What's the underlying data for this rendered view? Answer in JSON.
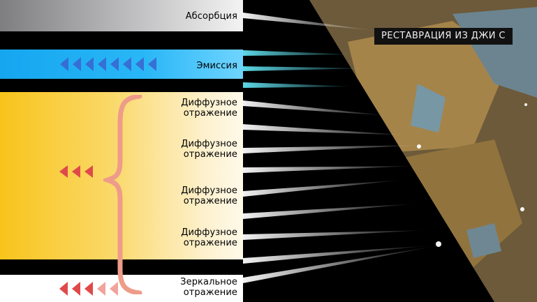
{
  "labels": {
    "absorption": "Абсорбция",
    "emission": "Эмиссия",
    "diffuse_1": "Диффузное\nотражение",
    "diffuse_2": "Диффузное\nотражение",
    "diffuse_3": "Диффузное\nотражение",
    "diffuse_4": "Диффузное\nотражение",
    "specular": "Зеркальное\nотражение"
  },
  "photo": {
    "caption": "РЕСТАВРАЦИЯ ИЗ ДЖИ С"
  },
  "colors": {
    "absorption_band": "#b9b9bb",
    "emission_band": "#2ab7f6",
    "diffuse_band": "#fad867",
    "arrow_blue": "#3a63cf",
    "arrow_red": "#df4a49",
    "brace": "#ee9c89"
  },
  "icons": {
    "emission_arrows": "left-arrow-icon",
    "diffuse_arrows": "left-arrow-icon",
    "specular_arrows": "left-arrow-icon",
    "brace": "curly-brace-icon"
  }
}
